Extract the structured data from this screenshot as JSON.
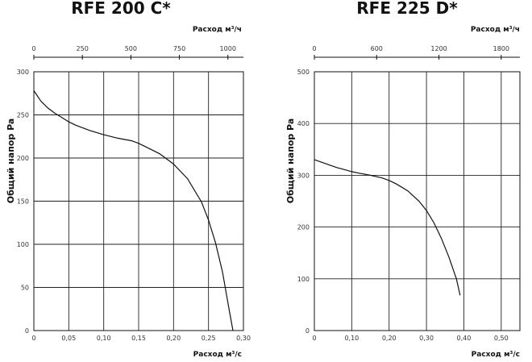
{
  "chart_data": [
    {
      "type": "line",
      "title": "RFE 200 C*",
      "xlabel": "Расход м³/с",
      "ylabel": "Общий напор Pa",
      "x2label": "Расход м³/ч",
      "xlim": [
        0,
        0.3
      ],
      "ylim": [
        0,
        300
      ],
      "x2lim": [
        0,
        1080
      ],
      "xticks": [
        "0",
        "0,05",
        "0,10",
        "0,15",
        "0,20",
        "0,25",
        "0,30"
      ],
      "yticks": [
        "0",
        "50",
        "100",
        "150",
        "200",
        "250",
        "300"
      ],
      "x2ticks": [
        "0",
        "250",
        "500",
        "750",
        "1000"
      ],
      "grid": true,
      "series": [
        {
          "x": [
            0,
            0.01,
            0.02,
            0.03,
            0.04,
            0.05,
            0.06,
            0.08,
            0.1,
            0.12,
            0.14,
            0.15,
            0.16,
            0.18,
            0.2,
            0.22,
            0.24,
            0.25,
            0.26,
            0.27,
            0.28,
            0.285
          ],
          "y": [
            278,
            266,
            258,
            252,
            247,
            242,
            238,
            232,
            227,
            223,
            220,
            217,
            213,
            205,
            193,
            176,
            149,
            128,
            102,
            68,
            22,
            0
          ]
        }
      ]
    },
    {
      "type": "line",
      "title": "RFE 225 D*",
      "xlabel": "Расход м³/с",
      "ylabel": "Общий напор Pa",
      "x2label": "Расход м³/ч",
      "xlim": [
        0,
        0.55
      ],
      "ylim": [
        0,
        500
      ],
      "x2lim": [
        0,
        1980
      ],
      "xticks": [
        "0",
        "0,10",
        "0,20",
        "0,30",
        "0,40",
        "0,50"
      ],
      "yticks": [
        "0",
        "100",
        "200",
        "300",
        "400",
        "500"
      ],
      "x2ticks": [
        "0",
        "600",
        "1200",
        "1800"
      ],
      "grid": true,
      "series": [
        {
          "x": [
            0,
            0.02,
            0.04,
            0.06,
            0.08,
            0.1,
            0.12,
            0.15,
            0.18,
            0.2,
            0.22,
            0.25,
            0.28,
            0.3,
            0.32,
            0.34,
            0.36,
            0.38,
            0.39
          ],
          "y": [
            330,
            325,
            320,
            315,
            311,
            307,
            304,
            300,
            295,
            290,
            283,
            270,
            250,
            232,
            208,
            178,
            142,
            100,
            68
          ]
        }
      ]
    }
  ]
}
